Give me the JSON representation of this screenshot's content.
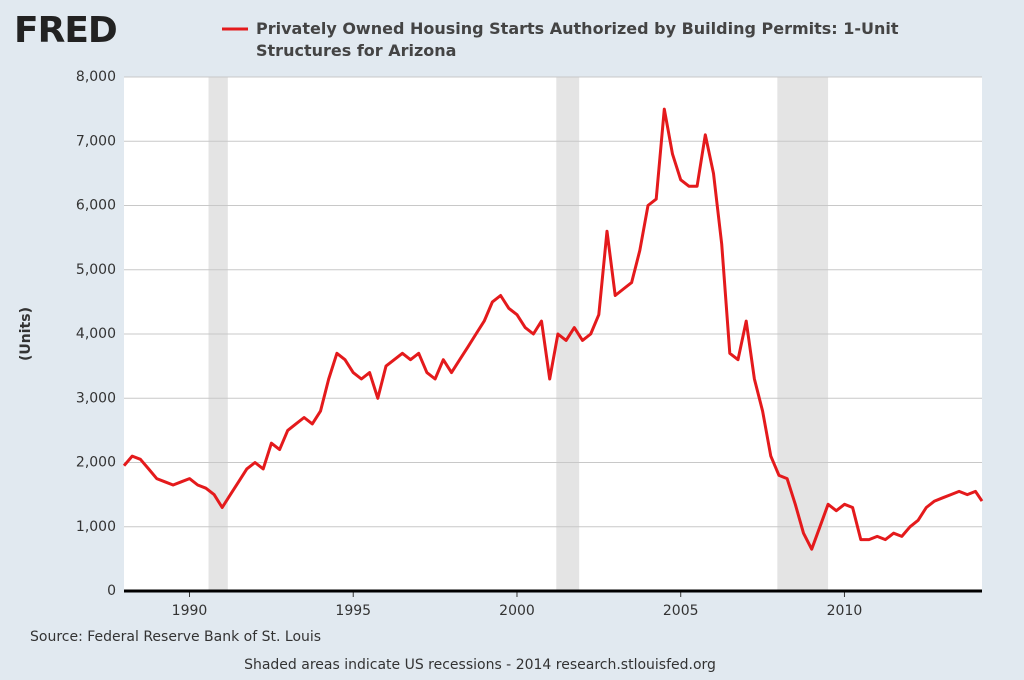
{
  "chart_data": {
    "type": "line",
    "logo": "FRED",
    "y_label": "(Units)",
    "source": "Source: Federal Reserve Bank of St. Louis",
    "note": "Shaded areas indicate US recessions - 2014 research.stlouisfed.org",
    "xlim": [
      1988,
      2014.2
    ],
    "xticks": [
      1990,
      1995,
      2000,
      2005,
      2010
    ],
    "ylim": [
      0,
      8000
    ],
    "yticks": [
      0,
      {
        "value": 1000,
        "label": "1,000"
      },
      {
        "value": 2000,
        "label": "2,000"
      },
      {
        "value": 3000,
        "label": "3,000"
      },
      {
        "value": 4000,
        "label": "4,000"
      },
      {
        "value": 5000,
        "label": "5,000"
      },
      {
        "value": 6000,
        "label": "6,000"
      },
      {
        "value": 7000,
        "label": "7,000"
      },
      {
        "value": 8000,
        "label": "8,000"
      }
    ],
    "grid": true,
    "recessions": [
      [
        1990.58,
        1991.17
      ],
      [
        2001.2,
        2001.9
      ],
      [
        2007.95,
        2009.5
      ]
    ],
    "series": [
      {
        "name": "Privately Owned Housing Starts Authorized by Building Permits: 1-Unit Structures for Arizona",
        "color": "#e41a1c",
        "x": [
          1988,
          1988.25,
          1988.5,
          1988.75,
          1989,
          1989.25,
          1989.5,
          1989.75,
          1990,
          1990.25,
          1990.5,
          1990.75,
          1991,
          1991.25,
          1991.5,
          1991.75,
          1992,
          1992.25,
          1992.5,
          1992.75,
          1993,
          1993.25,
          1993.5,
          1993.75,
          1994,
          1994.25,
          1994.5,
          1994.75,
          1995,
          1995.25,
          1995.5,
          1995.75,
          1996,
          1996.25,
          1996.5,
          1996.75,
          1997,
          1997.25,
          1997.5,
          1997.75,
          1998,
          1998.25,
          1998.5,
          1998.75,
          1999,
          1999.25,
          1999.5,
          1999.75,
          2000,
          2000.25,
          2000.5,
          2000.75,
          2001,
          2001.25,
          2001.5,
          2001.75,
          2002,
          2002.25,
          2002.5,
          2002.75,
          2003,
          2003.25,
          2003.5,
          2003.75,
          2004,
          2004.25,
          2004.5,
          2004.75,
          2005,
          2005.25,
          2005.5,
          2005.75,
          2006,
          2006.25,
          2006.5,
          2006.75,
          2007,
          2007.25,
          2007.5,
          2007.75,
          2008,
          2008.25,
          2008.5,
          2008.75,
          2009,
          2009.25,
          2009.5,
          2009.75,
          2010,
          2010.25,
          2010.5,
          2010.75,
          2011,
          2011.25,
          2011.5,
          2011.75,
          2012,
          2012.25,
          2012.5,
          2012.75,
          2013,
          2013.25,
          2013.5,
          2013.75,
          2014,
          2014.2
        ],
        "values": [
          1950,
          2100,
          2050,
          1900,
          1750,
          1700,
          1650,
          1700,
          1750,
          1650,
          1600,
          1500,
          1300,
          1500,
          1700,
          1900,
          2000,
          1900,
          2300,
          2200,
          2500,
          2600,
          2700,
          2600,
          2800,
          3300,
          3700,
          3600,
          3400,
          3300,
          3400,
          3000,
          3500,
          3600,
          3700,
          3600,
          3700,
          3400,
          3300,
          3600,
          3400,
          3600,
          3800,
          4000,
          4200,
          4500,
          4600,
          4400,
          4300,
          4100,
          4000,
          4200,
          3300,
          4000,
          3900,
          4100,
          3900,
          4000,
          4300,
          5600,
          4600,
          4700,
          4800,
          5300,
          6000,
          6100,
          7500,
          6800,
          6400,
          6300,
          6300,
          7100,
          6500,
          5400,
          3700,
          3600,
          4200,
          3300,
          2800,
          2100,
          1800,
          1750,
          1350,
          900,
          650,
          1000,
          1350,
          1250,
          1350,
          1300,
          800,
          800,
          850,
          800,
          900,
          850,
          1000,
          1100,
          1300,
          1400,
          1450,
          1500,
          1550,
          1500,
          1550,
          1400
        ]
      }
    ]
  }
}
